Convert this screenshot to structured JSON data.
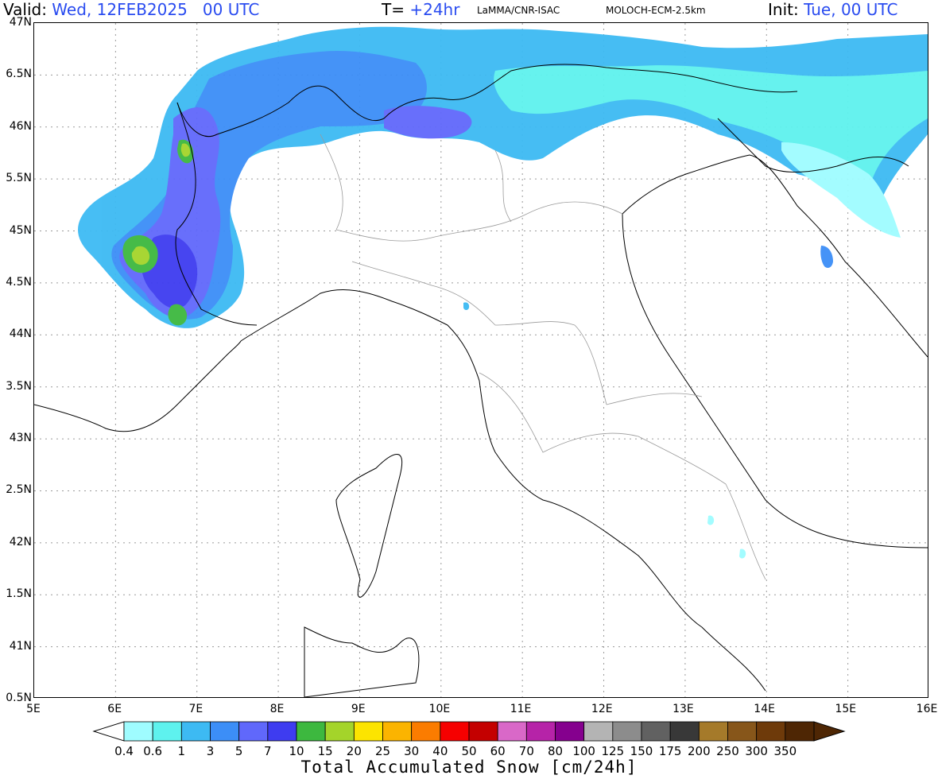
{
  "header": {
    "valid_label": "Valid:",
    "valid_value": "Wed, 12FEB2025   00 UTC",
    "t_label": "T=",
    "t_value": "+24hr",
    "source": "LaMMA/CNR-ISAC",
    "model": "MOLOCH-ECM-2.5km",
    "init_label": "Init:",
    "init_value": "Tue, 00 UTC"
  },
  "lat_labels": [
    "47N",
    "6.5N",
    "46N",
    "5.5N",
    "45N",
    "4.5N",
    "44N",
    "3.5N",
    "43N",
    "2.5N",
    "42N",
    "1.5N",
    "41N",
    "0.5N"
  ],
  "lon_labels": [
    "5E",
    "6E",
    "7E",
    "8E",
    "9E",
    "10E",
    "11E",
    "12E",
    "13E",
    "14E",
    "15E",
    "16E"
  ],
  "colorbar": {
    "labels": [
      "0.4",
      "0.6",
      "1",
      "3",
      "5",
      "7",
      "10",
      "15",
      "20",
      "25",
      "30",
      "40",
      "50",
      "60",
      "70",
      "80",
      "100",
      "125",
      "150",
      "175",
      "200",
      "250",
      "300",
      "350"
    ],
    "colors": [
      "#9ffcff",
      "#5ef2ee",
      "#3dbaf3",
      "#3c8ef7",
      "#6068fb",
      "#3e3cf0",
      "#3db83f",
      "#a4d42a",
      "#fce400",
      "#fbb400",
      "#fb7c00",
      "#f60000",
      "#c40000",
      "#d968c8",
      "#b623a8",
      "#85008e",
      "#b4b4b4",
      "#8c8c8c",
      "#616161",
      "#383838",
      "#a57a2a",
      "#87561a",
      "#6e3a0a",
      "#4e2604"
    ],
    "title": "Total Accumulated Snow [cm/24h]"
  }
}
